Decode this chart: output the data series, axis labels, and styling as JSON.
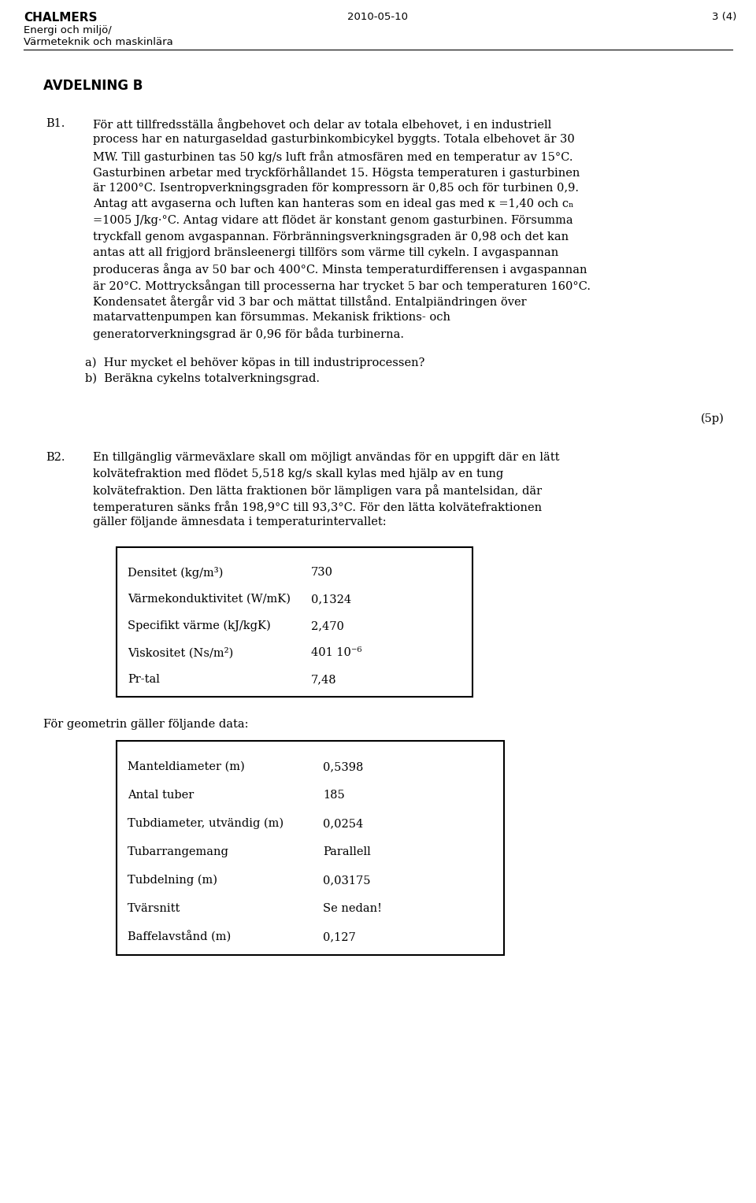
{
  "header_left_bold": "CHALMERS",
  "header_left_line2": "Energi och miljö/",
  "header_left_line3": "Värmeteknik och maskinlära",
  "header_center": "2010-05-10",
  "header_right": "3 (4)",
  "section_title": "AVDELNING B",
  "b1_label": "B1.",
  "b1_lines": [
    "För att tillfredsställa ångbehovet och delar av totala elbehovet, i en industriell",
    "process har en naturgaseldad gasturbinkombicykel byggts. Totala elbehovet är 30",
    "MW. Till gasturbinen tas 50 kg/s luft från atmosfären med en temperatur av 15°C.",
    "Gasturbinen arbetar med tryckförhållandet 15. Högsta temperaturen i gasturbinen",
    "är 1200°C. Isentropverkningsgraden för kompressorn är 0,85 och för turbinen 0,9.",
    "Antag att avgaserna och luften kan hanteras som en ideal gas med κ =1,40 och cₙ",
    "=1005 J/kg·°C. Antag vidare att flödet är konstant genom gasturbinen. Försumma",
    "tryckfall genom avgaspannan. Förbränningsverkningsgraden är 0,98 och det kan",
    "antas att all frigjord bränsleenergi tillförs som värme till cykeln. I avgaspannan",
    "produceras ånga av 50 bar och 400°C. Minsta temperaturdifferensen i avgaspannan",
    "är 20°C. Mottrycksångan till processerna har trycket 5 bar och temperaturen 160°C.",
    "Kondensatet återgår vid 3 bar och mättat tillstånd. Entalpiändringen över",
    "matarvattenpumpen kan försummas. Mekanisk friktions- och",
    "generatorverkningsgrad är 0,96 för båda turbinerna."
  ],
  "b1_subq_a": "a)  Hur mycket el behöver köpas in till industriprocessen?",
  "b1_subq_b": "b)  Beräkna cykelns totalverkningsgrad.",
  "b1_points": "(5p)",
  "b2_label": "B2.",
  "b2_lines": [
    "En tillgänglig värmeväxlare skall om möjligt användas för en uppgift där en lätt",
    "kolvätefraktion med flödet 5,518 kg/s skall kylas med hjälp av en tung",
    "kolvätefraktion. Den lätta fraktionen bör lämpligen vara på mantelsidan, där",
    "temperaturen sänks från 198,9°C till 93,3°C. För den lätta kolvätefraktionen",
    "gäller följande ämnesdata i temperaturintervallet:"
  ],
  "table1_rows": [
    [
      "Densitet (kg/m³)",
      "730"
    ],
    [
      "Värmekonduktivitet (W/mK)",
      "0,1324"
    ],
    [
      "Specifikt värme (kJ/kgK)",
      "2,470"
    ],
    [
      "Viskositet (Ns/m²)",
      "401 10⁻⁶"
    ],
    [
      "Pr-tal",
      "7,48"
    ]
  ],
  "geometry_intro": "För geometrin gäller följande data:",
  "table2_rows": [
    [
      "Manteldiameter (m)",
      "0,5398"
    ],
    [
      "Antal tuber",
      "185"
    ],
    [
      "Tubdiameter, utvändig (m)",
      "0,0254"
    ],
    [
      "Tubarrangemang",
      "Parallell"
    ],
    [
      "Tubdelning (m)",
      "0,03175"
    ],
    [
      "Tvärsnitt",
      "Se nedan!"
    ],
    [
      "Baffelavstånd (m)",
      "0,127"
    ]
  ],
  "bg_color": "#ffffff",
  "text_color": "#000000"
}
